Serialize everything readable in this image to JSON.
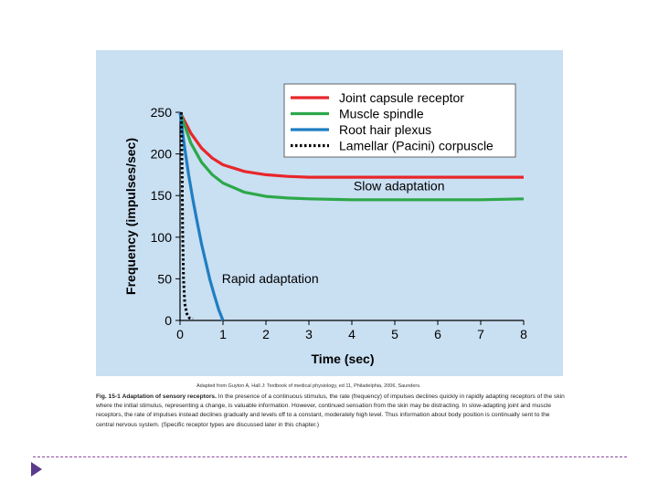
{
  "colors": {
    "panel": "#c9dff2",
    "bullet": "#5a3a8a",
    "divider": "#8a4a9a"
  },
  "chart_data": {
    "type": "line",
    "xlabel": "Time (sec)",
    "ylabel": "Frequency (impulses/sec)",
    "xlim": [
      0,
      8
    ],
    "ylim": [
      0,
      250
    ],
    "x_ticks": [
      "0",
      "1",
      "2",
      "3",
      "4",
      "5",
      "6",
      "7",
      "8"
    ],
    "y_ticks": [
      "0",
      "50",
      "100",
      "150",
      "200",
      "250"
    ],
    "grid": false,
    "legend_position": "top-right",
    "series": [
      {
        "name": "Joint capsule receptor",
        "color": "#e8262a",
        "style": "solid",
        "x": [
          0,
          0.25,
          0.5,
          0.75,
          1,
          1.5,
          2,
          2.5,
          3,
          4,
          5,
          6,
          7,
          8
        ],
        "y": [
          250,
          225,
          207,
          195,
          187,
          179,
          175,
          173,
          172,
          172,
          172,
          172,
          172,
          172
        ]
      },
      {
        "name": "Muscle spindle",
        "color": "#2da84a",
        "style": "solid",
        "x": [
          0,
          0.25,
          0.5,
          0.75,
          1,
          1.5,
          2,
          2.5,
          3,
          4,
          5,
          6,
          7,
          8
        ],
        "y": [
          250,
          213,
          190,
          175,
          165,
          154,
          149,
          147,
          146,
          145,
          145,
          145,
          145,
          146
        ]
      },
      {
        "name": "Root hair plexus",
        "color": "#1f7ec1",
        "style": "solid",
        "x": [
          0,
          0.1,
          0.2,
          0.3,
          0.4,
          0.5,
          0.6,
          0.7,
          0.8,
          0.9,
          1.0
        ],
        "y": [
          250,
          210,
          175,
          145,
          118,
          92,
          70,
          48,
          30,
          13,
          0
        ]
      },
      {
        "name": "Lamellar (Pacini) corpuscle",
        "color": "#000000",
        "style": "dotted",
        "x": [
          0.03,
          0.05,
          0.06,
          0.08,
          0.11,
          0.16,
          0.22,
          0.3
        ],
        "y": [
          250,
          180,
          110,
          50,
          20,
          8,
          3,
          2
        ]
      }
    ],
    "annotations": [
      {
        "text": "Slow adaptation",
        "x": 5.1,
        "y": 156
      },
      {
        "text": "Rapid adaptation",
        "x": 2.1,
        "y": 45
      }
    ]
  },
  "credit_text": "Adapted from Guyton A, Hall J: Textbook of medical physiology, ed 11, Philadelphia, 2006, Saunders.",
  "caption": {
    "figure_label": "Fig. 15-1",
    "bold_text": "Adaptation of sensory receptors.",
    "body_text": "In the presence of a continuous stimulus, the rate (frequency) of impulses declines quickly in rapidly adapting receptors of the skin where the initial stimulus, representing a change, is valuable information. However, continued sensation from the skin may be distracting. In slow-adapting joint and muscle receptors, the rate of impulses instead declines gradually and levels off to a constant, moderately high level. Thus information about body position is continually sent to the central nervous system. (Specific receptor types are discussed later in this chapter.)"
  }
}
